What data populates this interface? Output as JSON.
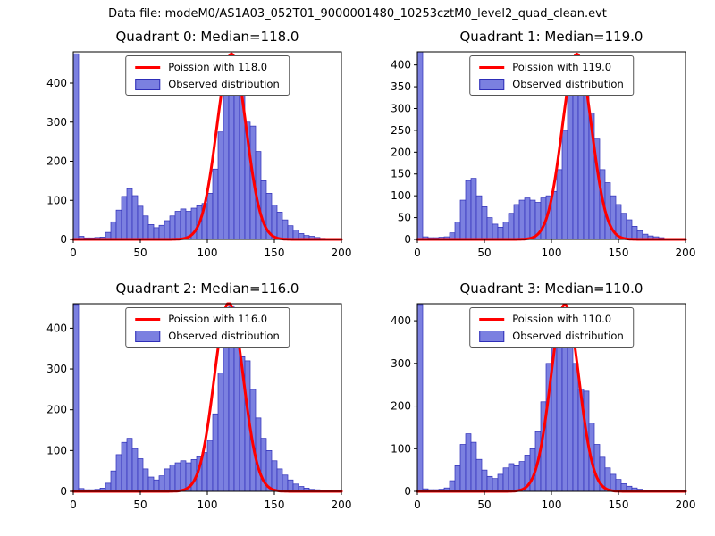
{
  "figure": {
    "title": "Data file: modeM0/AS1A03_052T01_9000001480_10253cztM0_level2_quad_clean.evt"
  },
  "colors": {
    "bar_fill": "#7b80e0",
    "bar_edge": "#2e2eb8",
    "curve": "#ff0000",
    "axis": "#000000",
    "background": "#ffffff"
  },
  "chart_data": [
    {
      "type": "bar",
      "title": "Quadrant 0: Median=118.0",
      "median": 118.0,
      "legend": {
        "poisson": "Poission with 118.0",
        "observed": "Observed distribution"
      },
      "xlabel": "",
      "ylabel": "",
      "xlim": [
        0,
        200
      ],
      "ylim": [
        0,
        480
      ],
      "xticks": [
        0,
        50,
        100,
        150,
        200
      ],
      "yticks": [
        0,
        100,
        200,
        300,
        400
      ],
      "bin_start": 0,
      "bin_width": 4,
      "values": [
        475,
        8,
        4,
        4,
        5,
        6,
        18,
        45,
        75,
        110,
        130,
        112,
        85,
        60,
        38,
        30,
        36,
        48,
        60,
        72,
        78,
        72,
        80,
        86,
        92,
        118,
        180,
        275,
        380,
        470,
        455,
        370,
        300,
        290,
        225,
        150,
        118,
        88,
        70,
        50,
        35,
        24,
        15,
        10,
        8,
        5,
        3,
        2,
        0,
        0
      ],
      "poisson_fit": {
        "mean": 118.0,
        "sigma": 10.9,
        "amplitude": 475
      }
    },
    {
      "type": "bar",
      "title": "Quadrant 1: Median=119.0",
      "median": 119.0,
      "legend": {
        "poisson": "Poission with 119.0",
        "observed": "Observed distribution"
      },
      "xlabel": "",
      "ylabel": "",
      "xlim": [
        0,
        200
      ],
      "ylim": [
        0,
        430
      ],
      "xticks": [
        0,
        50,
        100,
        150,
        200
      ],
      "yticks": [
        0,
        50,
        100,
        150,
        200,
        250,
        300,
        350,
        400
      ],
      "bin_start": 0,
      "bin_width": 4,
      "values": [
        430,
        6,
        4,
        4,
        5,
        6,
        15,
        40,
        90,
        135,
        140,
        100,
        75,
        50,
        35,
        28,
        40,
        60,
        80,
        90,
        95,
        90,
        85,
        95,
        100,
        110,
        160,
        250,
        350,
        420,
        410,
        360,
        290,
        230,
        160,
        130,
        100,
        80,
        60,
        45,
        30,
        20,
        12,
        8,
        6,
        4,
        2,
        1,
        0,
        0
      ],
      "poisson_fit": {
        "mean": 119.0,
        "sigma": 10.9,
        "amplitude": 425
      }
    },
    {
      "type": "bar",
      "title": "Quadrant 2: Median=116.0",
      "median": 116.0,
      "legend": {
        "poisson": "Poission with 116.0",
        "observed": "Observed distribution"
      },
      "xlabel": "",
      "ylabel": "",
      "xlim": [
        0,
        200
      ],
      "ylim": [
        0,
        460
      ],
      "xticks": [
        0,
        50,
        100,
        150,
        200
      ],
      "yticks": [
        0,
        100,
        200,
        300,
        400
      ],
      "bin_start": 0,
      "bin_width": 4,
      "values": [
        458,
        7,
        4,
        4,
        5,
        8,
        20,
        50,
        90,
        120,
        130,
        105,
        80,
        55,
        35,
        28,
        38,
        55,
        65,
        70,
        75,
        70,
        78,
        85,
        95,
        125,
        190,
        290,
        400,
        455,
        430,
        330,
        320,
        250,
        180,
        130,
        100,
        75,
        55,
        40,
        28,
        18,
        12,
        8,
        5,
        4,
        2,
        1,
        0,
        0
      ],
      "poisson_fit": {
        "mean": 116.0,
        "sigma": 10.8,
        "amplitude": 462
      }
    },
    {
      "type": "bar",
      "title": "Quadrant 3: Median=110.0",
      "median": 110.0,
      "legend": {
        "poisson": "Poission with 110.0",
        "observed": "Observed distribution"
      },
      "xlabel": "",
      "ylabel": "",
      "xlim": [
        0,
        200
      ],
      "ylim": [
        0,
        440
      ],
      "xticks": [
        0,
        50,
        100,
        150,
        200
      ],
      "yticks": [
        0,
        100,
        200,
        300,
        400
      ],
      "bin_start": 0,
      "bin_width": 4,
      "values": [
        438,
        6,
        4,
        4,
        5,
        8,
        25,
        60,
        110,
        135,
        115,
        75,
        50,
        35,
        30,
        40,
        55,
        65,
        60,
        70,
        85,
        100,
        140,
        210,
        300,
        390,
        430,
        420,
        370,
        300,
        240,
        235,
        160,
        110,
        80,
        55,
        40,
        28,
        18,
        12,
        8,
        5,
        3,
        2,
        1,
        0,
        0,
        0,
        0,
        0
      ],
      "poisson_fit": {
        "mean": 110.0,
        "sigma": 10.5,
        "amplitude": 438
      }
    }
  ]
}
